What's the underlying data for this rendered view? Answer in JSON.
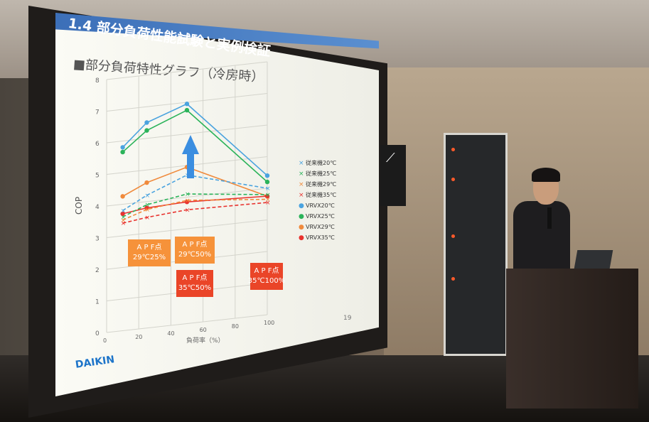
{
  "slide": {
    "title": "1.4 部分負荷性能試験と実例検証",
    "chart_heading": "■部分負荷特性グラフ（冷房時）",
    "page_number": "19",
    "logo": "DAIKIN"
  },
  "chart_data": {
    "type": "line",
    "title": "■部分負荷特性グラフ（冷房時）",
    "xlabel": "負荷率（%）",
    "ylabel": "COP",
    "x": [
      0,
      20,
      40,
      60,
      80,
      100
    ],
    "x_ticks": [
      "0",
      "20",
      "40",
      "60",
      "80",
      "100"
    ],
    "y_ticks": [
      "0",
      "1",
      "2",
      "3",
      "4",
      "5",
      "6",
      "7",
      "8"
    ],
    "ylim": [
      0,
      8
    ],
    "legend": [
      "従来機20℃",
      "従来機25℃",
      "従来機29℃",
      "従来機35℃",
      "VRVX20℃",
      "VRVX25℃",
      "VRVX29℃",
      "VRVX35℃"
    ],
    "colors": {
      "c20": "#4aa3df",
      "c25": "#2bb35a",
      "c29": "#f08a3c",
      "c35": "#e8322e"
    },
    "series": [
      {
        "name": "VRVX20℃",
        "x": [
          10,
          25,
          50,
          100
        ],
        "y": [
          5.8,
          6.5,
          6.95,
          4.4
        ]
      },
      {
        "name": "VRVX25℃",
        "x": [
          10,
          25,
          50,
          100
        ],
        "y": [
          5.65,
          6.25,
          6.75,
          4.2
        ]
      },
      {
        "name": "VRVX29℃",
        "x": [
          10,
          25,
          50,
          100
        ],
        "y": [
          4.25,
          4.6,
          4.95,
          3.75
        ]
      },
      {
        "name": "VRVX35℃",
        "x": [
          10,
          25,
          50,
          100
        ],
        "y": [
          3.7,
          3.8,
          3.85,
          3.75
        ]
      },
      {
        "name": "従来機20℃",
        "x": [
          10,
          25,
          50,
          100
        ],
        "y": [
          3.8,
          4.2,
          4.7,
          4.0
        ]
      },
      {
        "name": "従来機25℃",
        "x": [
          10,
          25,
          50,
          100
        ],
        "y": [
          3.6,
          3.9,
          4.1,
          3.8
        ]
      },
      {
        "name": "従来機29℃",
        "x": [
          10,
          25,
          50,
          100
        ],
        "y": [
          3.5,
          3.75,
          3.9,
          3.65
        ]
      },
      {
        "name": "従来機35℃",
        "x": [
          10,
          25,
          50,
          100
        ],
        "y": [
          3.4,
          3.5,
          3.6,
          3.55
        ]
      }
    ],
    "annotations": [
      {
        "text": "A P F点\n29℃25%",
        "color": "#f6923a"
      },
      {
        "text": "A P F点\n29℃50%",
        "color": "#f6923a"
      },
      {
        "text": "A P F点\n35℃50%",
        "color": "#ea4528"
      },
      {
        "text": "A P F点\n35℃100%",
        "color": "#ea4528"
      }
    ]
  }
}
